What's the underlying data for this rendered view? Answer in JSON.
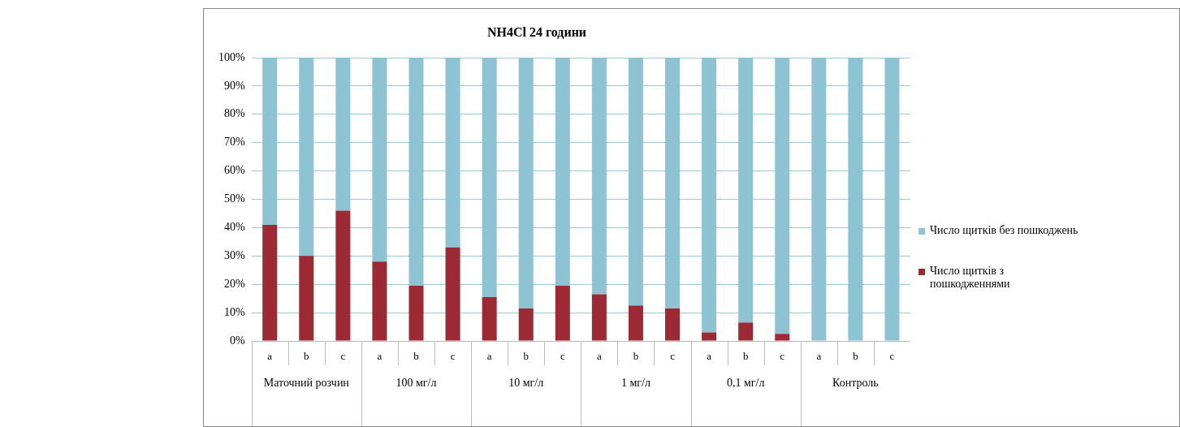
{
  "chart_data": {
    "type": "bar",
    "title": "NH4Cl 24 години",
    "stacked": true,
    "categories": [
      "a",
      "b",
      "c",
      "a",
      "b",
      "c",
      "a",
      "b",
      "c",
      "a",
      "b",
      "c",
      "a",
      "b",
      "c",
      "a",
      "b",
      "c"
    ],
    "annotations": [
      "Маточний розчин",
      "100 мг/л",
      "10 мг/л",
      "1 мг/л",
      "0,1 мг/л",
      "Контроль"
    ],
    "series": [
      {
        "name": "Число щитків з пошкодженнями",
        "color": "#9b2a35",
        "values": [
          41,
          30,
          46,
          28,
          19.5,
          33,
          15.5,
          11.5,
          19.5,
          16.5,
          12.5,
          11.5,
          3,
          6.5,
          2.5,
          0,
          0,
          0
        ]
      },
      {
        "name": "Число щитків без пошкоджень",
        "color": "#8dc3d3",
        "values": [
          59,
          70,
          54,
          72,
          80.5,
          67,
          84.5,
          88.5,
          80.5,
          83.5,
          87.5,
          88.5,
          97,
          93.5,
          97.5,
          100,
          100,
          100
        ]
      }
    ],
    "ylim": [
      0,
      100
    ],
    "yticks": [
      {
        "value": 0,
        "label": "0%"
      },
      {
        "value": 10,
        "label": "10%"
      },
      {
        "value": 20,
        "label": "20%"
      },
      {
        "value": 30,
        "label": "30%"
      },
      {
        "value": 40,
        "label": "40%"
      },
      {
        "value": 50,
        "label": "50%"
      },
      {
        "value": 60,
        "label": "60%"
      },
      {
        "value": 70,
        "label": "70%"
      },
      {
        "value": 80,
        "label": "80%"
      },
      {
        "value": 90,
        "label": "90%"
      },
      {
        "value": 100,
        "label": "100%"
      }
    ],
    "grid": "y",
    "legend": "right"
  }
}
